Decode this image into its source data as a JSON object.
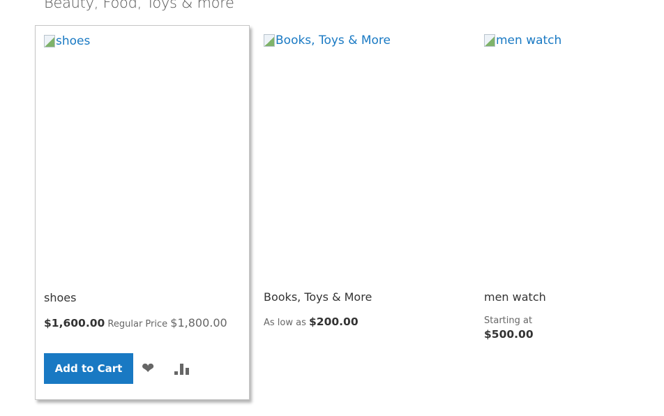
{
  "section_title": "Beauty, Food, Toys & more",
  "products": [
    {
      "image_alt": "shoes",
      "name": "shoes",
      "final_price": "$1,600.00",
      "regular_label": "Regular Price",
      "regular_price": "$1,800.00",
      "add_to_cart": "Add to Cart"
    },
    {
      "image_alt": "Books, Toys & More",
      "name": "Books, Toys & More",
      "price_label": "As low as",
      "price": "$200.00"
    },
    {
      "image_alt": "men watch",
      "name": "men watch",
      "price_label": "Starting at",
      "price": "$500.00"
    }
  ],
  "colors": {
    "accent": "#1979c3"
  },
  "icons": [
    "heart-icon",
    "compare-bar-chart-icon"
  ]
}
